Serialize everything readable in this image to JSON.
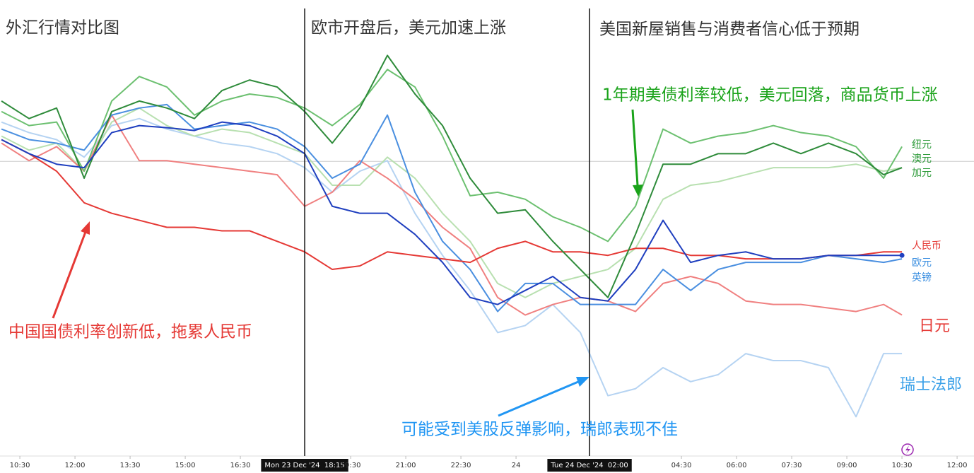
{
  "chart_data": {
    "type": "line",
    "titles": [
      "外汇行情对比图",
      "欧市开盘后，美元加速上涨",
      "美国新屋销售与消费者信心低于预期"
    ],
    "x": [
      10,
      10.75,
      11.5,
      12.25,
      13,
      13.75,
      14.5,
      15.25,
      16,
      16.75,
      17.5,
      18.25,
      19,
      19.75,
      20.5,
      21.25,
      22,
      22.75,
      23.5,
      24.25,
      25,
      25.75,
      26.5,
      27.25,
      28,
      28.75,
      29.5,
      30.25,
      31,
      31.75,
      32.5,
      33.25,
      34,
      34.5
    ],
    "xlim": [
      9.96,
      36.46
    ],
    "xticks": [
      {
        "value": 10.5,
        "label": "10:30"
      },
      {
        "value": 12,
        "label": "12:00"
      },
      {
        "value": 13.5,
        "label": "13:30"
      },
      {
        "value": 15,
        "label": "15:00"
      },
      {
        "value": 16.5,
        "label": "16:30"
      },
      {
        "value": 18.25,
        "label": "Mon 23 Dec '24  18:15",
        "highlight": true
      },
      {
        "value": 19.5,
        "label": "19:30"
      },
      {
        "value": 21,
        "label": "21:00"
      },
      {
        "value": 22.5,
        "label": "22:30"
      },
      24,
      {
        "value": 26,
        "label": "Tue 24 Dec '24  02:00",
        "highlight": true
      },
      {
        "value": 28.5,
        "label": "04:30"
      },
      {
        "value": 30,
        "label": "06:00"
      },
      {
        "value": 31.5,
        "label": "07:30"
      },
      {
        "value": 33,
        "label": "09:00"
      },
      {
        "value": 34.5,
        "label": "10:30"
      },
      {
        "value": 36,
        "label": "12:00"
      }
    ],
    "ylim": [
      -4.2,
      2.3
    ],
    "baseline": 0,
    "series": [
      {
        "name": "纽元",
        "color": "#2e8b3a",
        "label_color": "#2e9b3a",
        "values": [
          0.86,
          0.61,
          0.76,
          -0.24,
          0.71,
          0.86,
          0.76,
          0.61,
          1.01,
          1.16,
          1.06,
          0.71,
          0.26,
          0.76,
          1.51,
          0.96,
          0.51,
          -0.24,
          -0.74,
          -0.69,
          -1.14,
          -1.54,
          -1.94,
          -1.04,
          -0.04,
          -0.04,
          0.11,
          0.11,
          0.26,
          0.11,
          0.26,
          0.11,
          -0.19,
          -0.09
        ]
      },
      {
        "name": "澳元",
        "color": "#6cc070",
        "label_color": "#2e9b3a",
        "values": [
          0.71,
          0.51,
          0.56,
          -0.14,
          0.86,
          1.21,
          1.06,
          0.66,
          0.86,
          0.96,
          0.91,
          0.76,
          0.51,
          0.81,
          1.31,
          1.06,
          0.36,
          -0.49,
          -0.44,
          -0.54,
          -0.79,
          -0.94,
          -1.14,
          -0.64,
          0.46,
          0.26,
          0.36,
          0.41,
          0.51,
          0.41,
          0.36,
          0.21,
          -0.24,
          0.21
        ]
      },
      {
        "name": "加元",
        "color": "#b8e0b0",
        "label_color": "#2e9b3a",
        "values": [
          0.36,
          0.16,
          0.26,
          -0.14,
          0.56,
          0.76,
          0.51,
          0.36,
          0.46,
          0.41,
          0.26,
          0.11,
          -0.34,
          -0.34,
          0.06,
          -0.24,
          -0.74,
          -1.14,
          -1.74,
          -1.94,
          -1.74,
          -1.64,
          -1.54,
          -1.24,
          -0.54,
          -0.34,
          -0.29,
          -0.19,
          -0.09,
          -0.09,
          -0.09,
          -0.04,
          -0.14,
          -0.09
        ]
      },
      {
        "name": "人民币",
        "color": "#e53935",
        "label_color": "#e53935",
        "values": [
          0.31,
          0.11,
          -0.14,
          -0.59,
          -0.74,
          -0.84,
          -0.94,
          -0.94,
          -0.99,
          -0.99,
          -1.14,
          -1.29,
          -1.54,
          -1.49,
          -1.29,
          -1.34,
          -1.39,
          -1.44,
          -1.24,
          -1.14,
          -1.29,
          -1.29,
          -1.34,
          -1.24,
          -1.24,
          -1.34,
          -1.34,
          -1.39,
          -1.39,
          -1.39,
          -1.34,
          -1.34,
          -1.29,
          -1.29
        ]
      },
      {
        "name": "欧元",
        "color": "#1f3fbf",
        "label_color": "#3a8ee0",
        "values": [
          0.31,
          0.11,
          -0.04,
          -0.09,
          0.41,
          0.51,
          0.48,
          0.44,
          0.56,
          0.51,
          0.36,
          0.11,
          -0.64,
          -0.74,
          -0.74,
          -1.04,
          -1.44,
          -1.94,
          -2.04,
          -1.84,
          -1.64,
          -1.94,
          -1.99,
          -1.54,
          -0.84,
          -1.44,
          -1.34,
          -1.29,
          -1.39,
          -1.39,
          -1.34,
          -1.34,
          -1.34,
          -1.34
        ]
      },
      {
        "name": "英镑",
        "color": "#4a8fe0",
        "label_color": "#3a8ee0",
        "values": [
          0.46,
          0.31,
          0.26,
          0.16,
          0.66,
          0.76,
          0.81,
          0.46,
          0.51,
          0.56,
          0.46,
          0.21,
          -0.24,
          -0.04,
          0.66,
          -0.44,
          -1.14,
          -1.54,
          -2.14,
          -1.74,
          -1.74,
          -2.04,
          -2.04,
          -2.04,
          -1.54,
          -1.84,
          -1.54,
          -1.44,
          -1.44,
          -1.44,
          -1.34,
          -1.39,
          -1.44,
          -1.39
        ]
      },
      {
        "name": "日元",
        "color": "#f08080",
        "label_color": "#e53935",
        "values": [
          0.26,
          0.01,
          0.21,
          -0.14,
          0.66,
          0.01,
          0.01,
          -0.04,
          -0.09,
          -0.14,
          -0.19,
          -0.64,
          -0.44,
          0.01,
          -0.24,
          -0.54,
          -0.94,
          -1.24,
          -1.94,
          -2.19,
          -2.04,
          -1.94,
          -1.99,
          -2.14,
          -1.74,
          -1.64,
          -1.74,
          -1.99,
          -2.04,
          -2.04,
          -2.09,
          -2.14,
          -2.04,
          -2.19
        ]
      },
      {
        "name": "瑞士法郎",
        "color": "#b5d3f2",
        "label_color": "#3aa0e8",
        "values": [
          0.56,
          0.41,
          0.31,
          0.06,
          0.51,
          0.61,
          0.46,
          0.36,
          0.26,
          0.21,
          0.11,
          -0.09,
          -0.44,
          -0.14,
          0.01,
          -0.74,
          -1.34,
          -1.84,
          -2.44,
          -2.34,
          -2.04,
          -2.44,
          -3.34,
          -3.24,
          -2.94,
          -3.14,
          -3.04,
          -2.74,
          -2.84,
          -2.84,
          -2.94,
          -3.64,
          -2.74,
          -2.74
        ]
      }
    ],
    "annotations": [
      {
        "text": "1年期美债利率较低，美元回落，商品货币上涨",
        "color": "#1aa31a"
      },
      {
        "text": "中国国债利率创新低，拖累人民币",
        "color": "#e53935"
      },
      {
        "text": "可能受到美股反弹影响，瑞郎表现不佳",
        "color": "#2196f3"
      }
    ]
  }
}
